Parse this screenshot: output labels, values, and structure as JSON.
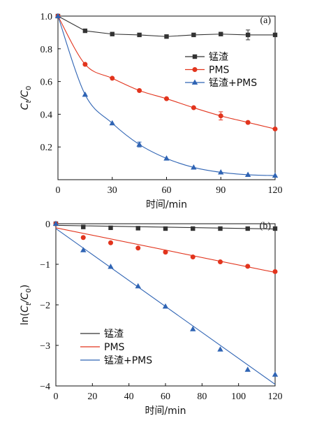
{
  "chart_data": [
    {
      "type": "line",
      "panel_label": "(a)",
      "xlabel": "时间/min",
      "ylabel": {
        "main": "C",
        "sub1": "t",
        "slash": "/C",
        "sub2": "0"
      },
      "xlim": [
        0,
        120
      ],
      "ylim": [
        0,
        1.0
      ],
      "xticks": [
        "0",
        "30",
        "60",
        "90",
        "120"
      ],
      "yticks": [
        "0.2",
        "0.4",
        "0.6",
        "0.8",
        "1.0"
      ],
      "x_tick_values": [
        0,
        30,
        60,
        90,
        120
      ],
      "y_tick_values": [
        0.2,
        0.4,
        0.6,
        0.8,
        1.0
      ],
      "legend_position": "center-right",
      "series": [
        {
          "name": "锰渣",
          "marker": "square",
          "color": "#333333",
          "x": [
            0,
            15,
            30,
            45,
            60,
            75,
            90,
            105,
            120
          ],
          "y": [
            1.0,
            0.91,
            0.89,
            0.885,
            0.875,
            0.885,
            0.89,
            0.885,
            0.885
          ],
          "error": [
            0,
            0,
            0,
            0,
            0,
            0,
            0,
            0.03,
            0
          ],
          "fit": "connect"
        },
        {
          "name": "PMS",
          "marker": "circle",
          "color": "#e2341d",
          "x": [
            0,
            15,
            30,
            45,
            60,
            75,
            90,
            105,
            120
          ],
          "y": [
            1.0,
            0.705,
            0.62,
            0.545,
            0.495,
            0.44,
            0.39,
            0.35,
            0.31
          ],
          "error": [
            0,
            0,
            0,
            0,
            0,
            0,
            0.025,
            0,
            0
          ],
          "fit": "smooth"
        },
        {
          "name": "锰渣+PMS",
          "marker": "triangle",
          "color": "#2f64b4",
          "x": [
            0,
            15,
            30,
            45,
            60,
            75,
            90,
            105,
            120
          ],
          "y": [
            1.0,
            0.52,
            0.345,
            0.215,
            0.13,
            0.075,
            0.045,
            0.03,
            0.025
          ],
          "error": [
            0,
            0,
            0,
            0.015,
            0,
            0,
            0,
            0,
            0
          ],
          "fit": "smooth"
        }
      ]
    },
    {
      "type": "line",
      "panel_label": "(b)",
      "xlabel": "时间/min",
      "ylabel": {
        "pre": "ln(",
        "main": "C",
        "sub1": "t",
        "slash": "/C",
        "sub2": "0",
        "post": ")"
      },
      "xlim": [
        0,
        120
      ],
      "ylim": [
        -4,
        0
      ],
      "xticks": [
        "0",
        "20",
        "40",
        "60",
        "80",
        "100",
        "120"
      ],
      "yticks": [
        "−4",
        "−3",
        "−2",
        "−1",
        "0"
      ],
      "x_tick_values": [
        0,
        20,
        40,
        60,
        80,
        100,
        120
      ],
      "y_tick_values": [
        -4,
        -3,
        -2,
        -1,
        0
      ],
      "legend_position": "bottom-left",
      "series": [
        {
          "name": "锰渣",
          "marker": "square",
          "color": "#333333",
          "x": [
            0,
            15,
            30,
            45,
            60,
            75,
            90,
            105,
            120
          ],
          "y": [
            0,
            -0.08,
            -0.1,
            -0.11,
            -0.12,
            -0.12,
            -0.12,
            -0.12,
            -0.12
          ],
          "fit_line": [
            [
              0,
              -0.04
            ],
            [
              120,
              -0.13
            ]
          ]
        },
        {
          "name": "PMS",
          "marker": "circle",
          "color": "#e2341d",
          "x": [
            0,
            15,
            30,
            45,
            60,
            75,
            90,
            105,
            120
          ],
          "y": [
            0,
            -0.34,
            -0.47,
            -0.6,
            -0.7,
            -0.82,
            -0.94,
            -1.05,
            -1.18
          ],
          "fit_line": [
            [
              0,
              -0.1
            ],
            [
              120,
              -1.2
            ]
          ]
        },
        {
          "name": "锰渣+PMS",
          "marker": "triangle",
          "color": "#2f64b4",
          "x": [
            0,
            15,
            30,
            45,
            60,
            75,
            90,
            105,
            120
          ],
          "y": [
            0,
            -0.65,
            -1.06,
            -1.54,
            -2.04,
            -2.6,
            -3.1,
            -3.6,
            -3.72
          ],
          "fit_line": [
            [
              0,
              -0.12
            ],
            [
              120,
              -3.96
            ]
          ]
        }
      ]
    }
  ]
}
